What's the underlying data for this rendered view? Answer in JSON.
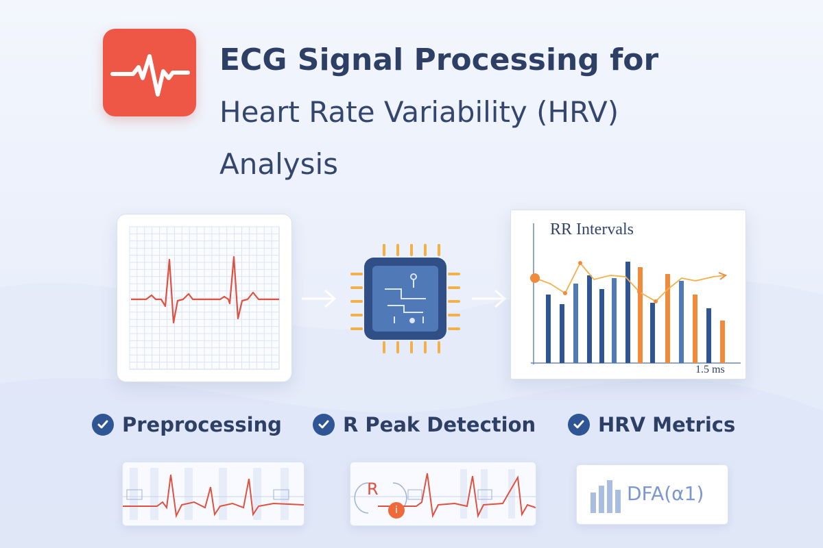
{
  "title": {
    "line1": "ECG Signal Processing for",
    "line2": "Heart Rate Variability (HRV)",
    "line3": "Analysis"
  },
  "icons": {
    "app": "heartbeat-icon",
    "processor": "processor-chip-icon",
    "check": "checkmark-icon",
    "info": "info-icon",
    "bar_chart": "bar-chart-icon"
  },
  "colors": {
    "accent_red": "#ee5645",
    "navy": "#2e3f66",
    "bar_blue": "#2f5595",
    "bar_orange": "#f28a3c",
    "signal_red": "#e0503f"
  },
  "rr_chart": {
    "title": "RR Intervals",
    "axis_label": "1.5 ms"
  },
  "steps": [
    {
      "label": "Preprocessing"
    },
    {
      "label": "R Peak Detection"
    },
    {
      "label": "HRV Metrics"
    }
  ],
  "mini": {
    "r_label": "R",
    "info_glyph": "i",
    "dfa_label": "DFA(α1)"
  }
}
